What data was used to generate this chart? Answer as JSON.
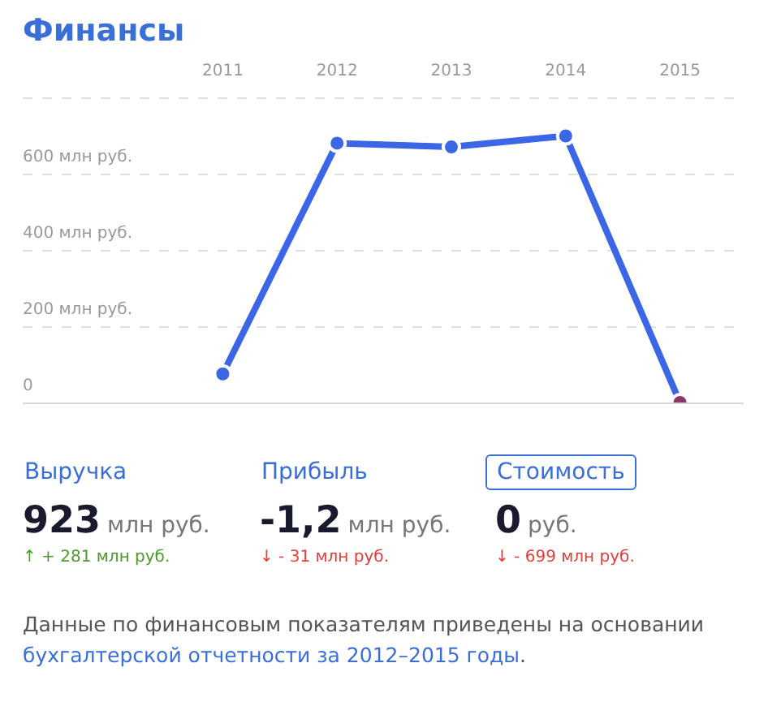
{
  "chart_data": [
    {
      "type": "line",
      "title": "Финансы",
      "categories": [
        "2011",
        "2012",
        "2013",
        "2014",
        "2015"
      ],
      "series": [
        {
          "color": "#3b66e6",
          "colors": [
            "#3b66e6",
            "#3b66e6",
            "#3b66e6",
            "#3b66e6",
            "#8e3868"
          ],
          "values": [
            75,
            680,
            670,
            699,
            0
          ]
        }
      ],
      "ylim": [
        0,
        800
      ],
      "yticks": [
        0,
        {
          "value": 200,
          "label": "200 млн руб."
        },
        {
          "value": 400,
          "label": "400 млн руб."
        },
        {
          "value": 600,
          "label": "600 млн руб."
        },
        {
          "value": 800,
          "label": null
        }
      ],
      "grid": true,
      "marker": "circle",
      "line_style": "solid",
      "legend": false
    },
    {
      "type": "other",
      "annotations": [
        "Выручка",
        "Прибыль",
        "Стоимость",
        "923",
        "млн руб.",
        "-1,2",
        "млн руб.",
        "0",
        "руб.",
        "↑ + 281 млн руб.",
        "↓ - 31 млн руб.",
        "↓ - 699 млн руб.",
        "Данные по финансовым показателям приведены на основании ",
        "бухгалтерской отчетности за 2012–2015 годы",
        "."
      ]
    }
  ]
}
